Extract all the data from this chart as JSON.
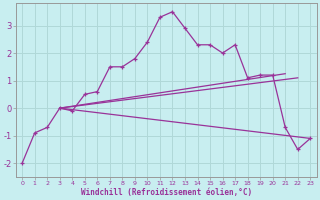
{
  "xlabel": "Windchill (Refroidissement éolien,°C)",
  "background_color": "#c8eef0",
  "grid_color": "#b0d8d8",
  "line_color": "#993399",
  "spine_color": "#999999",
  "x": [
    0,
    1,
    2,
    3,
    4,
    5,
    6,
    7,
    8,
    9,
    10,
    11,
    12,
    13,
    14,
    15,
    16,
    17,
    18,
    19,
    20,
    21,
    22,
    23
  ],
  "y_main": [
    -2.0,
    -0.9,
    -0.7,
    0.0,
    -0.1,
    0.5,
    0.6,
    1.5,
    1.5,
    1.8,
    2.4,
    3.3,
    3.5,
    2.9,
    2.3,
    2.3,
    2.0,
    2.3,
    1.1,
    1.2,
    1.2,
    -0.7,
    -1.5,
    -1.1
  ],
  "trend1_x": [
    3,
    21
  ],
  "trend1_y": [
    0.0,
    1.25
  ],
  "trend2_x": [
    3,
    22
  ],
  "trend2_y": [
    0.0,
    1.1
  ],
  "trend3_x": [
    3,
    23
  ],
  "trend3_y": [
    0.0,
    -1.1
  ],
  "ylim": [
    -2.5,
    3.8
  ],
  "xlim": [
    -0.5,
    23.5
  ],
  "yticks": [
    -2,
    -1,
    0,
    1,
    2,
    3
  ],
  "ytick_labels": [
    "-2",
    "-1",
    "0",
    "1",
    "2",
    "3"
  ],
  "xticks": [
    0,
    1,
    2,
    3,
    4,
    5,
    6,
    7,
    8,
    9,
    10,
    11,
    12,
    13,
    14,
    15,
    16,
    17,
    18,
    19,
    20,
    21,
    22,
    23
  ]
}
